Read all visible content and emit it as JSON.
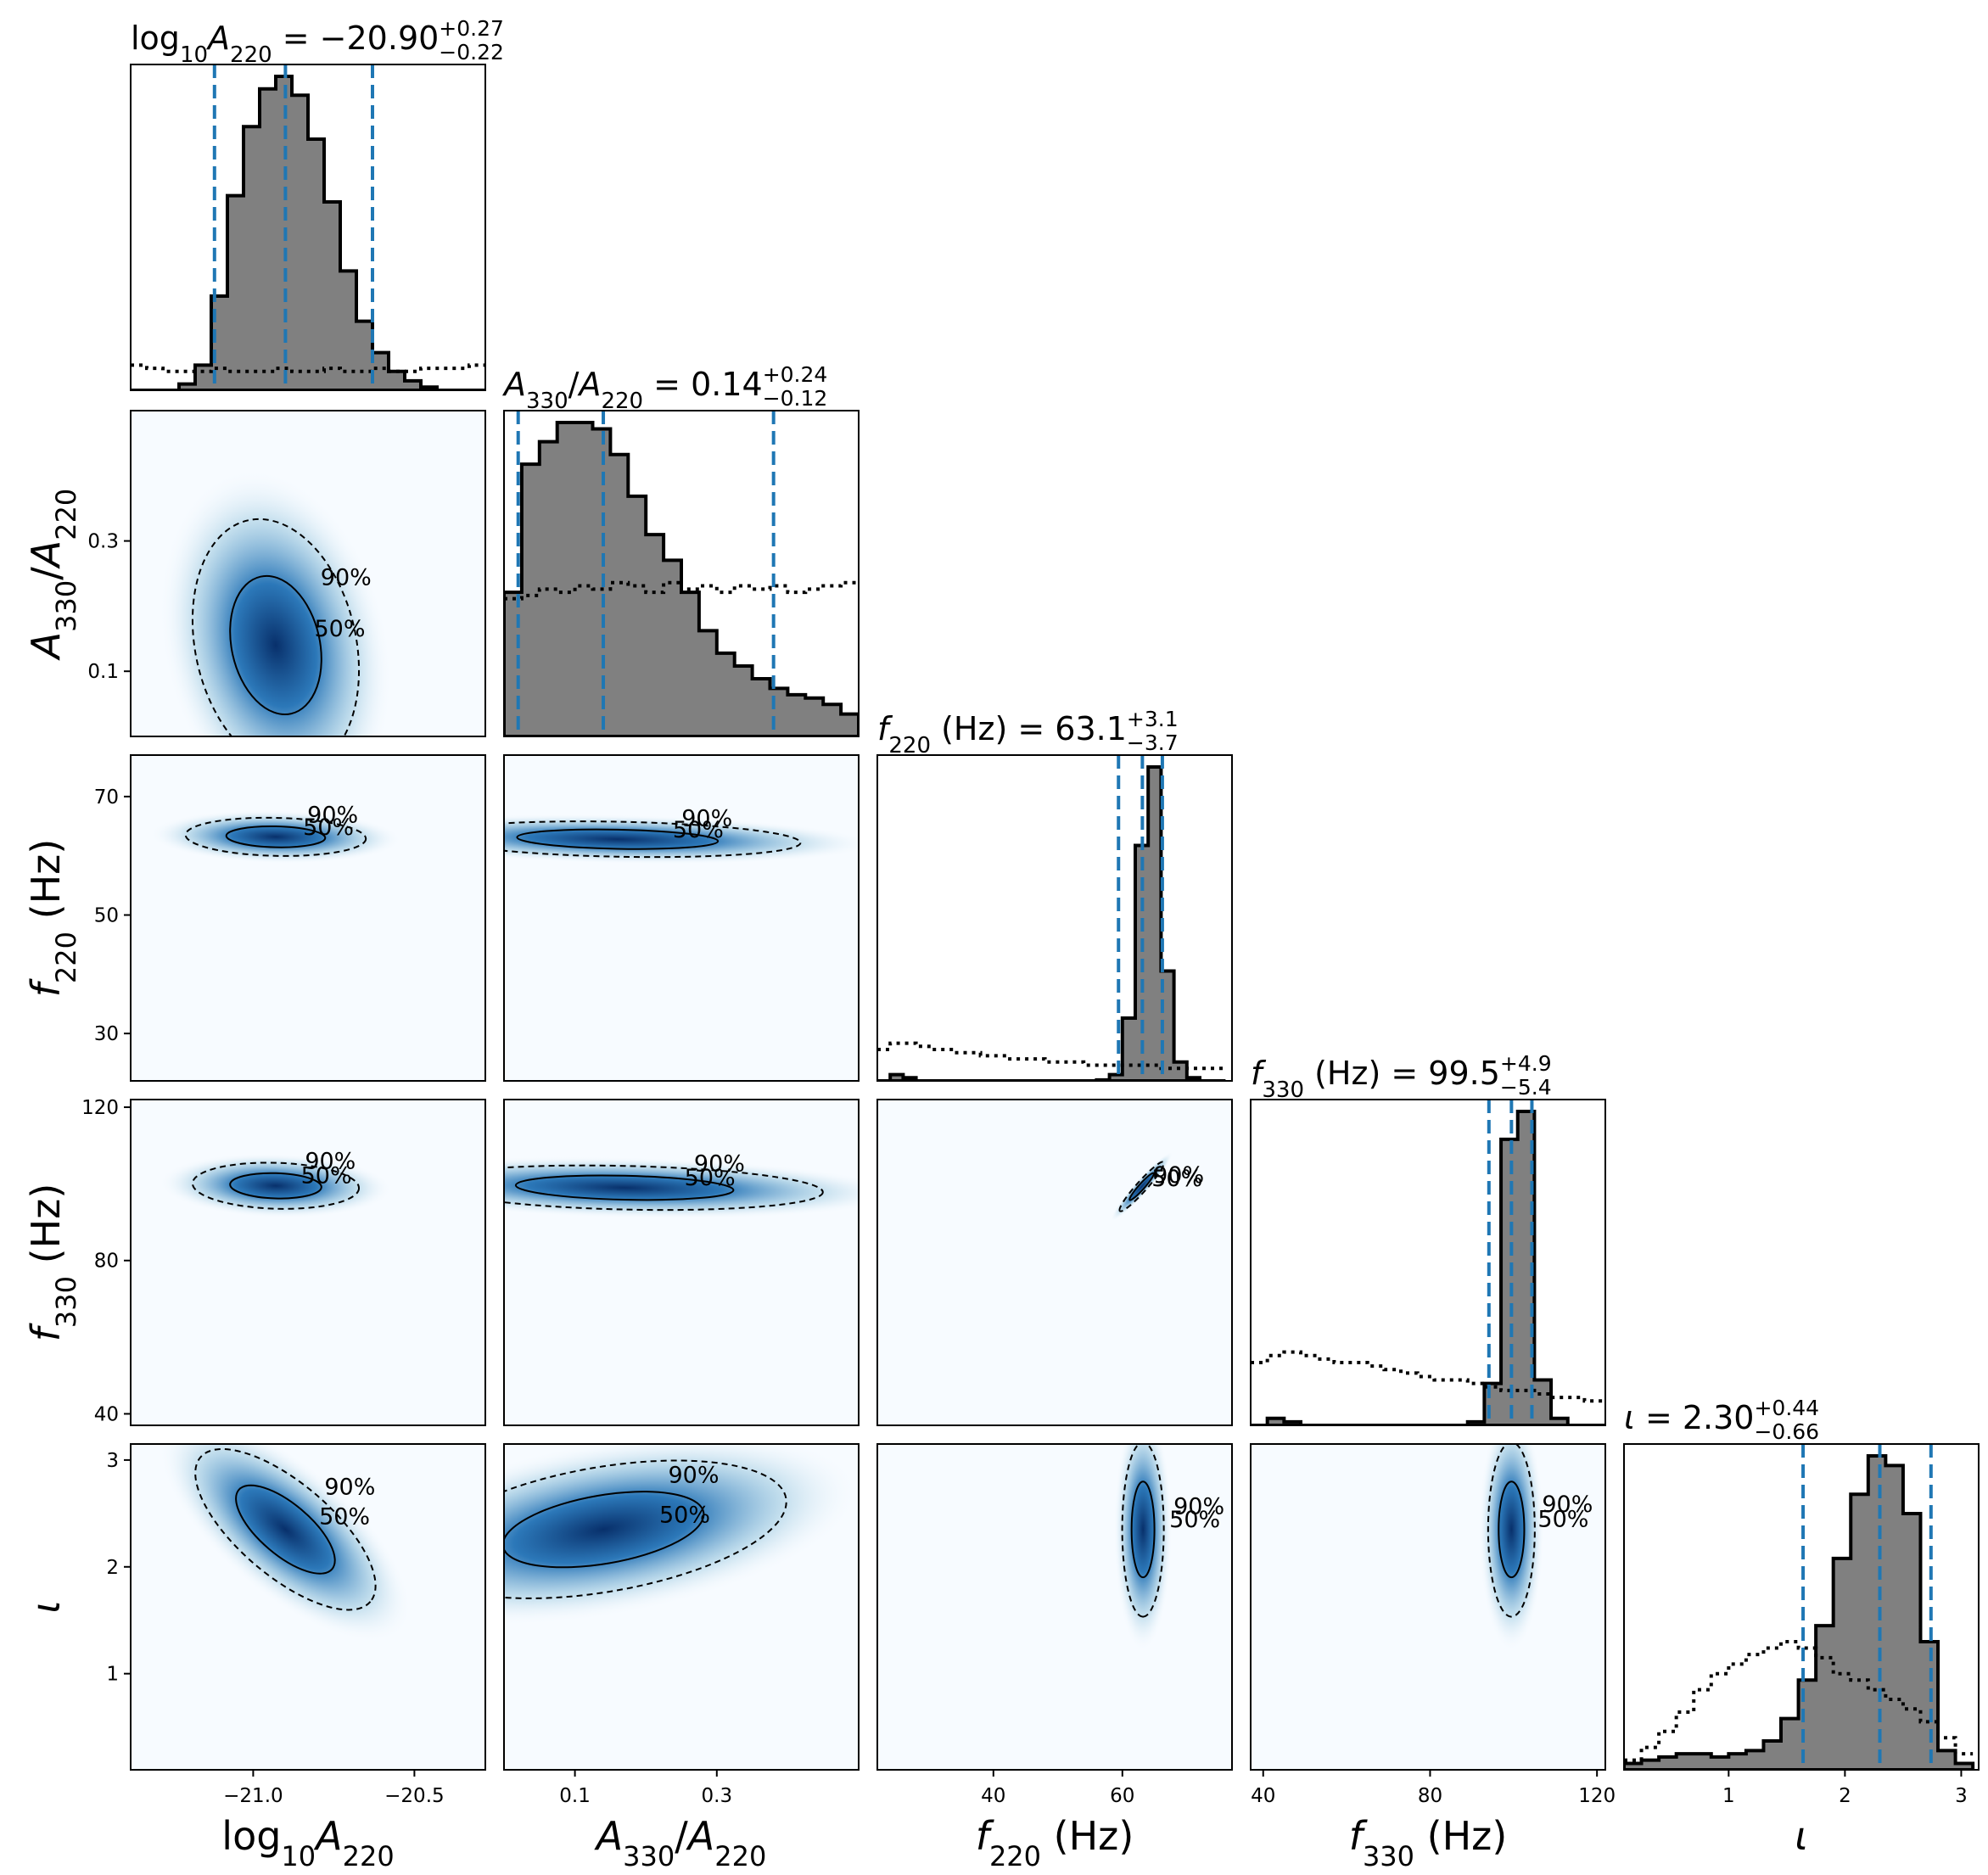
{
  "chart_data": {
    "type": "corner",
    "parameters": [
      {
        "key": "logA",
        "axis_label": "log10A220",
        "range": [
          -21.38,
          -20.28
        ],
        "ticks": [
          -21.0,
          -20.5
        ],
        "tick_labels": [
          "−21.0",
          "−20.5"
        ],
        "title": {
          "lhs": "log10A220",
          "median": "−20.90",
          "plus": "+0.27",
          "minus": "−0.22"
        },
        "median": -20.9,
        "lower": -21.12,
        "upper": -20.63
      },
      {
        "key": "ratio",
        "axis_label": "A330/A220",
        "range": [
          0.0,
          0.5
        ],
        "ticks": [
          0.1,
          0.3
        ],
        "tick_labels": [
          "0.1",
          "0.3"
        ],
        "title": {
          "lhs": "A330/A220",
          "median": "0.14",
          "plus": "+0.24",
          "minus": "−0.12"
        },
        "median": 0.14,
        "lower": 0.02,
        "upper": 0.38
      },
      {
        "key": "f220",
        "axis_label": "f220 (Hz)",
        "range": [
          22.0,
          77.0
        ],
        "ticks": [
          40,
          60
        ],
        "tick_labels": [
          "40",
          "60"
        ],
        "y_ticks": [
          30,
          50,
          70
        ],
        "y_tick_labels": [
          "30",
          "50",
          "70"
        ],
        "title": {
          "lhs": "f220 (Hz)",
          "median": "63.1",
          "plus": "+3.1",
          "minus": "−3.7"
        },
        "median": 63.1,
        "lower": 59.4,
        "upper": 66.2
      },
      {
        "key": "f330",
        "axis_label": "f330 (Hz)",
        "range": [
          37.0,
          122.0
        ],
        "ticks": [
          40,
          80,
          120
        ],
        "tick_labels": [
          "40",
          "80",
          "120"
        ],
        "title": {
          "lhs": "f330 (Hz)",
          "median": "99.5",
          "plus": "+4.9",
          "minus": "−5.4"
        },
        "median": 99.5,
        "lower": 94.1,
        "upper": 104.4
      },
      {
        "key": "iota",
        "axis_label": "ι",
        "range": [
          0.1,
          3.15
        ],
        "ticks": [
          1,
          2,
          3
        ],
        "tick_labels": [
          "1",
          "2",
          "3"
        ],
        "title": {
          "lhs": "ι",
          "median": "2.30",
          "plus": "+0.44",
          "minus": "−0.66"
        },
        "median": 2.3,
        "lower": 1.64,
        "upper": 2.74
      }
    ],
    "posterior_histograms": {
      "logA": {
        "bins": [
          -21.38,
          -21.33,
          -21.28,
          -21.23,
          -21.18,
          -21.13,
          -21.08,
          -21.03,
          -20.98,
          -20.93,
          -20.88,
          -20.83,
          -20.78,
          -20.73,
          -20.68,
          -20.63,
          -20.58,
          -20.53,
          -20.48,
          -20.43,
          -20.38,
          -20.33,
          -20.28
        ],
        "counts": [
          0,
          0,
          0,
          0.02,
          0.08,
          0.3,
          0.62,
          0.84,
          0.96,
          1.0,
          0.94,
          0.8,
          0.6,
          0.38,
          0.22,
          0.12,
          0.06,
          0.03,
          0.01,
          0,
          0,
          0
        ]
      },
      "ratio": {
        "bins": [
          0,
          0.025,
          0.05,
          0.075,
          0.1,
          0.125,
          0.15,
          0.175,
          0.2,
          0.225,
          0.25,
          0.275,
          0.3,
          0.325,
          0.35,
          0.375,
          0.4,
          0.425,
          0.45,
          0.475,
          0.5
        ],
        "counts": [
          0.45,
          0.85,
          0.92,
          0.98,
          0.98,
          0.96,
          0.88,
          0.75,
          0.63,
          0.55,
          0.45,
          0.33,
          0.26,
          0.22,
          0.18,
          0.15,
          0.13,
          0.12,
          0.1,
          0.07
        ]
      },
      "f220": {
        "bins": [
          22,
          24,
          26,
          28,
          30,
          32,
          34,
          36,
          38,
          40,
          42,
          44,
          46,
          48,
          50,
          52,
          54,
          56,
          58,
          60,
          62,
          64,
          66,
          68,
          70,
          72,
          74,
          76
        ],
        "counts": [
          0,
          0.02,
          0.01,
          0,
          0,
          0,
          0,
          0,
          0,
          0,
          0,
          0,
          0,
          0,
          0,
          0,
          0,
          0.003,
          0.02,
          0.2,
          0.75,
          1.0,
          0.35,
          0.06,
          0.01,
          0,
          0
        ]
      },
      "f330": {
        "bins": [
          37,
          41,
          45,
          49,
          53,
          57,
          61,
          65,
          69,
          73,
          77,
          81,
          85,
          89,
          93,
          97,
          101,
          105,
          109,
          113,
          117,
          122
        ],
        "counts": [
          0,
          0.02,
          0.01,
          0,
          0,
          0,
          0,
          0,
          0,
          0,
          0,
          0,
          0,
          0.01,
          0.12,
          0.82,
          0.9,
          0.13,
          0.02,
          0,
          0
        ]
      },
      "iota": {
        "bins": [
          0.1,
          0.25,
          0.4,
          0.55,
          0.7,
          0.85,
          1.0,
          1.15,
          1.3,
          1.45,
          1.6,
          1.75,
          1.9,
          2.05,
          2.2,
          2.35,
          2.5,
          2.65,
          2.8,
          2.95,
          3.1
        ],
        "counts": [
          0.02,
          0.03,
          0.04,
          0.05,
          0.05,
          0.04,
          0.05,
          0.06,
          0.09,
          0.16,
          0.28,
          0.45,
          0.66,
          0.86,
          0.98,
          0.95,
          0.8,
          0.4,
          0.06,
          0.02
        ]
      }
    },
    "prior_histograms": {
      "logA": [
        0.08,
        0.07,
        0.06,
        0.06,
        0.06,
        0.07,
        0.06,
        0.06,
        0.06,
        0.07,
        0.06,
        0.06,
        0.07,
        0.06,
        0.06,
        0.07,
        0.06,
        0.06,
        0.07,
        0.07,
        0.07,
        0.08
      ],
      "ratio": [
        0.43,
        0.44,
        0.46,
        0.45,
        0.47,
        0.46,
        0.48,
        0.47,
        0.45,
        0.48,
        0.46,
        0.47,
        0.45,
        0.47,
        0.46,
        0.47,
        0.45,
        0.46,
        0.47,
        0.48
      ],
      "f220": [
        0.1,
        0.12,
        0.12,
        0.11,
        0.1,
        0.1,
        0.09,
        0.09,
        0.08,
        0.08,
        0.07,
        0.07,
        0.07,
        0.06,
        0.06,
        0.06,
        0.05,
        0.05,
        0.05,
        0.05,
        0.05,
        0.05,
        0.04,
        0.04,
        0.04,
        0.04,
        0.04
      ],
      "f330": [
        0.18,
        0.2,
        0.21,
        0.2,
        0.19,
        0.18,
        0.18,
        0.17,
        0.16,
        0.15,
        0.14,
        0.13,
        0.13,
        0.12,
        0.11,
        0.1,
        0.1,
        0.09,
        0.08,
        0.08,
        0.07
      ],
      "iota": [
        0.03,
        0.07,
        0.12,
        0.18,
        0.25,
        0.3,
        0.33,
        0.36,
        0.38,
        0.4,
        0.38,
        0.35,
        0.3,
        0.28,
        0.25,
        0.22,
        0.19,
        0.15,
        0.1,
        0.05
      ]
    },
    "joint_contours": [
      {
        "x": "logA",
        "y": "ratio",
        "center": [
          -20.93,
          0.14
        ],
        "sd": [
          0.12,
          0.09
        ],
        "rho": -0.2
      },
      {
        "x": "logA",
        "y": "f220",
        "center": [
          -20.93,
          63.2
        ],
        "sd": [
          0.13,
          1.5
        ],
        "rho": -0.1
      },
      {
        "x": "ratio",
        "y": "f220",
        "center": [
          0.16,
          62.8
        ],
        "sd": [
          0.12,
          1.4
        ],
        "rho": -0.2
      },
      {
        "x": "logA",
        "y": "f330",
        "center": [
          -20.93,
          99.5
        ],
        "sd": [
          0.12,
          2.8
        ],
        "rho": -0.1
      },
      {
        "x": "ratio",
        "y": "f330",
        "center": [
          0.17,
          99.0
        ],
        "sd": [
          0.13,
          2.7
        ],
        "rho": -0.2
      },
      {
        "x": "f220",
        "y": "f330",
        "center": [
          63.0,
          99.3
        ],
        "sd": [
          1.6,
          3.0
        ],
        "rho": 0.95
      },
      {
        "x": "logA",
        "y": "iota",
        "center": [
          -20.9,
          2.35
        ],
        "sd": [
          0.13,
          0.35
        ],
        "rho": -0.7
      },
      {
        "x": "ratio",
        "y": "iota",
        "center": [
          0.14,
          2.35
        ],
        "sd": [
          0.12,
          0.3
        ],
        "rho": 0.4
      },
      {
        "x": "f220",
        "y": "iota",
        "center": [
          63.2,
          2.35
        ],
        "sd": [
          1.5,
          0.38
        ],
        "rho": 0.0
      },
      {
        "x": "f330",
        "y": "iota",
        "center": [
          99.5,
          2.35
        ],
        "sd": [
          2.6,
          0.38
        ],
        "rho": 0.0
      }
    ],
    "contour_levels": [
      "50%",
      "90%"
    ],
    "colors": {
      "posterior_fill": "#808080",
      "quantile_lines": "#1f77b4",
      "density_dark": "#08306b",
      "density_light": "#f7fbff"
    }
  }
}
